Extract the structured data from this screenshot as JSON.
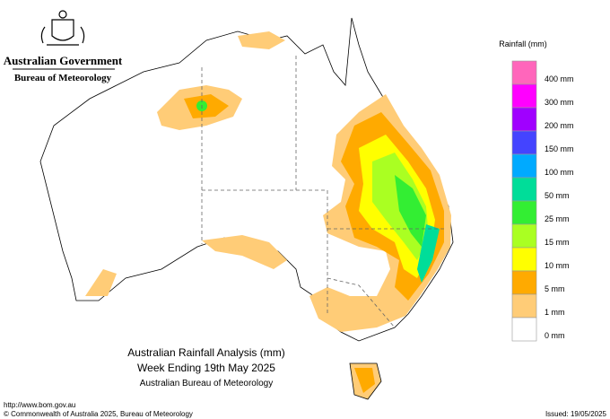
{
  "header": {
    "government": "Australian Government",
    "agency": "Bureau of Meteorology"
  },
  "legend": {
    "title": "Rainfall (mm)",
    "items": [
      {
        "label": "400 mm",
        "color": "#ff66bb"
      },
      {
        "label": "300 mm",
        "color": "#ff00ff"
      },
      {
        "label": "200 mm",
        "color": "#a000ff"
      },
      {
        "label": "150 mm",
        "color": "#4444ff"
      },
      {
        "label": "100 mm",
        "color": "#00aaff"
      },
      {
        "label": "50 mm",
        "color": "#00dd99"
      },
      {
        "label": "25 mm",
        "color": "#33ee33"
      },
      {
        "label": "15 mm",
        "color": "#aaff22"
      },
      {
        "label": "10 mm",
        "color": "#ffff00"
      },
      {
        "label": "5 mm",
        "color": "#ffaa00"
      },
      {
        "label": "1 mm",
        "color": "#ffcc77"
      },
      {
        "label": "0 mm",
        "color": "#ffffff"
      }
    ]
  },
  "title": {
    "line1": "Australian Rainfall Analysis (mm)",
    "line2": "Week Ending 19th May 2025",
    "line3": "Australian Bureau of Meteorology"
  },
  "footer": {
    "url": "http://www.bom.gov.au",
    "copyright": "© Commonwealth of Australia 2025, Bureau of Meteorology",
    "issued": "Issued: 19/05/2025"
  }
}
